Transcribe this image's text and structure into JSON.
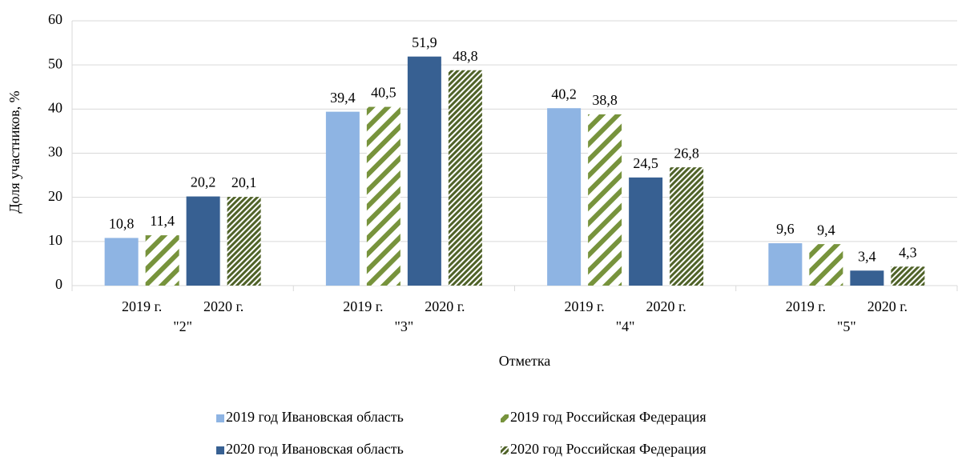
{
  "chart_data": {
    "type": "bar",
    "x_label": "Отметка",
    "y_label": "Доля участников, %",
    "categories": [
      "\"2\"",
      "\"3\"",
      "\"4\"",
      "\"5\""
    ],
    "subcategories": [
      "2019 г.",
      "2020 г."
    ],
    "ylim": [
      0,
      60
    ],
    "yticks": [
      0,
      10,
      20,
      30,
      40,
      50,
      60
    ],
    "grid": true,
    "legend": "bottom",
    "series": [
      {
        "name": "2019 год Ивановская область",
        "color": "#8eb4e3",
        "pattern": "solid",
        "label_color": "#595959",
        "values": [
          10.8,
          39.4,
          40.2,
          9.6
        ],
        "value_labels": [
          "10,8",
          "39,4",
          "40,2",
          "9,6"
        ]
      },
      {
        "name": "2019 год Российская Федерация",
        "color": "#77933c",
        "pattern": "wide-diagonal",
        "label_color": "#595959",
        "values": [
          11.4,
          40.5,
          38.8,
          9.4
        ],
        "value_labels": [
          "11,4",
          "40,5",
          "38,8",
          "9,4"
        ]
      },
      {
        "name": "2020 год Ивановская область",
        "color": "#376092",
        "pattern": "solid",
        "label_color": "#000000",
        "values": [
          20.2,
          51.9,
          24.5,
          3.4
        ],
        "value_labels": [
          "20,2",
          "51,9",
          "24,5",
          "3,4"
        ]
      },
      {
        "name": "2020 год Российская Федерация",
        "color": "#4f6228",
        "pattern": "dense-diagonal",
        "label_color": "#000000",
        "values": [
          20.1,
          48.8,
          26.8,
          4.3
        ],
        "value_labels": [
          "20,1",
          "48,8",
          "26,8",
          "4,3"
        ]
      }
    ]
  }
}
